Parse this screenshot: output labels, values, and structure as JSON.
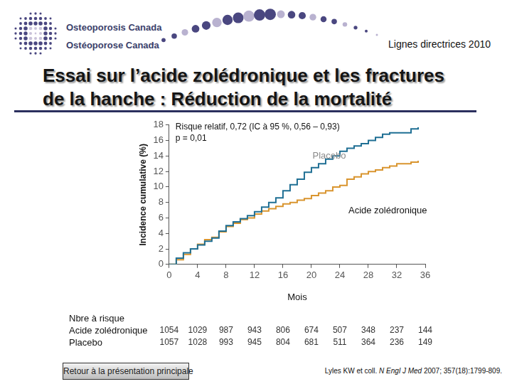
{
  "page": {
    "org_lines": [
      "Osteoporosis Canada",
      "Ostéoporose Canada"
    ],
    "guideline": "Lignes directrices 2010",
    "title_lines": [
      "Essai sur l’acide zolédronique et les fractures",
      "de la hanche : Réduction de la mortalité"
    ],
    "button": "Retour à la présentation principale",
    "citation": {
      "authors": "Lyles KW et coll. ",
      "journal": "N Engl J Med",
      "details": " 2007; 357(18):1799-809."
    }
  },
  "chart_data": {
    "type": "line",
    "y_label": "Incidence cumulative (%)",
    "x_label": "Mois",
    "annotations": [
      "Risque relatif, 0,72 (IC à 95 %, 0,56 – 0,93)",
      "p = 0,01"
    ],
    "x": [
      0,
      1,
      2,
      3,
      4,
      5,
      6,
      7,
      8,
      9,
      10,
      11,
      12,
      13,
      14,
      15,
      16,
      17,
      18,
      19,
      20,
      21,
      22,
      23,
      24,
      25,
      26,
      27,
      28,
      29,
      30,
      31,
      32,
      33,
      34,
      35
    ],
    "series": [
      {
        "name": "Placebo",
        "color": "#1f6f94",
        "values": [
          0,
          0.8,
          1.5,
          2.0,
          2.5,
          3.0,
          3.4,
          4.3,
          5.0,
          5.5,
          5.9,
          6.3,
          6.8,
          7.4,
          8.0,
          8.6,
          9.5,
          10.3,
          11.0,
          11.9,
          12.5,
          13.0,
          13.6,
          14.0,
          14.6,
          15.0,
          15.3,
          15.6,
          16.0,
          16.4,
          16.8,
          17.0,
          17.0,
          17.0,
          17.5,
          17.7
        ]
      },
      {
        "name": "Acide zolédronique",
        "color": "#d9952f",
        "values": [
          0,
          0.6,
          1.3,
          2.0,
          2.6,
          3.2,
          3.5,
          4.2,
          4.9,
          5.3,
          5.8,
          6.0,
          6.5,
          6.9,
          7.2,
          7.5,
          7.8,
          8.0,
          8.3,
          8.5,
          8.9,
          9.2,
          9.5,
          10.0,
          10.2,
          11.0,
          11.3,
          11.7,
          12.0,
          12.2,
          12.5,
          12.7,
          13.0,
          13.0,
          13.2,
          13.4
        ]
      }
    ],
    "xlim": [
      0,
      36
    ],
    "xticks": [
      0,
      4,
      8,
      12,
      16,
      20,
      24,
      28,
      32,
      36
    ],
    "ylim": [
      0,
      18
    ],
    "yticks": [
      0,
      2,
      4,
      6,
      8,
      10,
      12,
      14,
      16,
      18
    ],
    "grid": false,
    "marker": "none",
    "line_style": "stepped",
    "at_risk": {
      "title": "Nbre à risque",
      "rows": [
        {
          "name": "Acide zolédronique",
          "values": [
            1054,
            1029,
            987,
            943,
            806,
            674,
            507,
            348,
            237,
            144
          ]
        },
        {
          "name": "Placebo",
          "values": [
            1057,
            1028,
            993,
            945,
            804,
            681,
            511,
            364,
            236,
            149
          ]
        }
      ]
    }
  }
}
